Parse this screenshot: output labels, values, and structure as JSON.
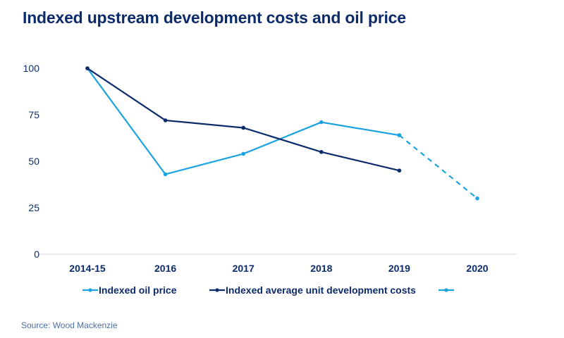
{
  "chart_data": {
    "type": "line",
    "title": "Indexed upstream development costs and oil price",
    "categories": [
      "2014-15",
      "2016",
      "2017",
      "2018",
      "2019",
      "2020"
    ],
    "xlabel": "",
    "ylabel": "",
    "ylim": [
      0,
      100
    ],
    "yticks": [
      0,
      25,
      50,
      75,
      100
    ],
    "grid": false,
    "legend_position": "bottom",
    "series": [
      {
        "name": "Indexed oil price",
        "values": [
          100,
          43,
          54,
          71,
          64,
          null
        ],
        "color": "#1aa3e0",
        "style": "solid"
      },
      {
        "name": "Indexed average unit development costs",
        "values": [
          100,
          72,
          68,
          55,
          45,
          null
        ],
        "color": "#0c2b6b",
        "style": "solid"
      },
      {
        "name": "",
        "values": [
          null,
          null,
          null,
          null,
          64,
          30
        ],
        "color": "#1aa3e0",
        "style": "dashed"
      }
    ]
  },
  "source": "Source: Wood Mackenzie"
}
